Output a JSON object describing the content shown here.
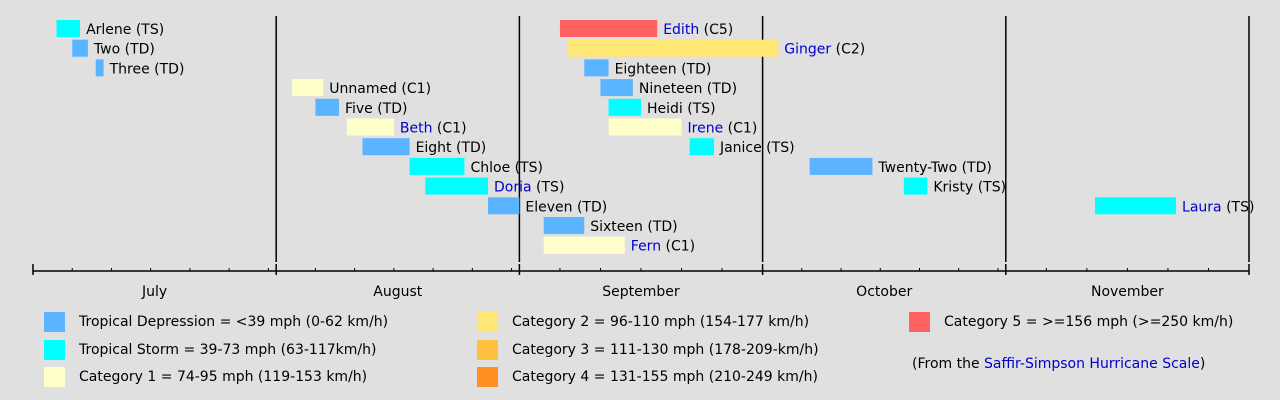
{
  "chart_data": {
    "type": "timeline",
    "title": "",
    "months": [
      "July",
      "August",
      "September",
      "October",
      "November"
    ],
    "month_ranges": [
      {
        "name": "July",
        "start": "07-01",
        "days": 31
      },
      {
        "name": "August",
        "start": "08-01",
        "days": 31
      },
      {
        "name": "September",
        "start": "09-01",
        "days": 30
      },
      {
        "name": "October",
        "start": "10-01",
        "days": 31
      },
      {
        "name": "November",
        "start": "11-01",
        "days": 30
      }
    ],
    "storms": [
      {
        "name": "Arlene",
        "cat": "TS",
        "start": "07-04",
        "end": "07-07",
        "link": false
      },
      {
        "name": "Two",
        "cat": "TD",
        "start": "07-06",
        "end": "07-08",
        "link": false
      },
      {
        "name": "Three",
        "cat": "TD",
        "start": "07-09",
        "end": "07-10",
        "link": false
      },
      {
        "name": "Unnamed",
        "cat": "C1",
        "start": "08-03",
        "end": "08-07",
        "link": false
      },
      {
        "name": "Five",
        "cat": "TD",
        "start": "08-06",
        "end": "08-09",
        "link": false
      },
      {
        "name": "Beth",
        "cat": "C1",
        "start": "08-10",
        "end": "08-16",
        "link": true
      },
      {
        "name": "Eight",
        "cat": "TD",
        "start": "08-12",
        "end": "08-18",
        "link": false
      },
      {
        "name": "Chloe",
        "cat": "TS",
        "start": "08-18",
        "end": "08-25",
        "link": false
      },
      {
        "name": "Doria",
        "cat": "TS",
        "start": "08-20",
        "end": "08-28",
        "link": true
      },
      {
        "name": "Eleven",
        "cat": "TD",
        "start": "08-28",
        "end": "09-01",
        "link": false
      },
      {
        "name": "Sixteen",
        "cat": "TD",
        "start": "09-04",
        "end": "09-09",
        "link": false
      },
      {
        "name": "Fern",
        "cat": "C1",
        "start": "09-04",
        "end": "09-14",
        "link": true
      },
      {
        "name": "Edith",
        "cat": "C5",
        "start": "09-06",
        "end": "09-18",
        "link": true
      },
      {
        "name": "Ginger",
        "cat": "C2",
        "start": "09-07",
        "end": "10-03",
        "link": true
      },
      {
        "name": "Eighteen",
        "cat": "TD",
        "start": "09-09",
        "end": "09-12",
        "link": false
      },
      {
        "name": "Nineteen",
        "cat": "TD",
        "start": "09-11",
        "end": "09-15",
        "link": false
      },
      {
        "name": "Heidi",
        "cat": "TS",
        "start": "09-12",
        "end": "09-16",
        "link": false
      },
      {
        "name": "Irene",
        "cat": "C1",
        "start": "09-12",
        "end": "09-21",
        "link": true
      },
      {
        "name": "Janice",
        "cat": "TS",
        "start": "09-22",
        "end": "09-25",
        "link": false
      },
      {
        "name": "Twenty-Two",
        "cat": "TD",
        "start": "10-07",
        "end": "10-15",
        "link": false
      },
      {
        "name": "Kristy",
        "cat": "TS",
        "start": "10-19",
        "end": "10-22",
        "link": false
      },
      {
        "name": "Laura",
        "cat": "TS",
        "start": "11-12",
        "end": "11-22",
        "link": true
      }
    ]
  },
  "category_colors": {
    "TD": "#5ab4ff",
    "TS": "#00ffff",
    "C1": "#ffffcc",
    "C2": "#ffe775",
    "C3": "#ffc140",
    "C4": "#ff8f20",
    "C5": "#ff6060"
  },
  "legend": {
    "items": [
      {
        "key": "TD",
        "text": "Tropical Depression = <39 mph (0-62 km/h)"
      },
      {
        "key": "TS",
        "text": "Tropical Storm = 39-73 mph (63-117km/h)"
      },
      {
        "key": "C1",
        "text": "Category 1 = 74-95 mph (119-153 km/h)"
      },
      {
        "key": "C2",
        "text": "Category 2 = 96-110 mph (154-177 km/h)"
      },
      {
        "key": "C3",
        "text": "Category 3 = 111-130 mph (178-209-km/h)"
      },
      {
        "key": "C4",
        "text": "Category 4 = 131-155 mph (210-249 km/h)"
      },
      {
        "key": "C5",
        "text": "Category 5 = >=156 mph (>=250 km/h)"
      }
    ],
    "source_prefix": "(From the ",
    "source_link": "Saffir-Simpson Hurricane Scale",
    "source_suffix": ")"
  }
}
